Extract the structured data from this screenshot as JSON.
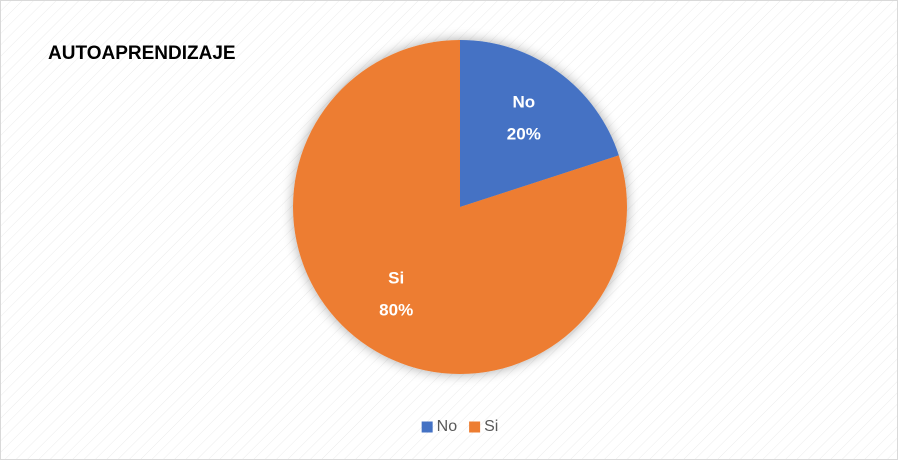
{
  "chart_data": {
    "type": "pie",
    "title": "AUTOAPRENDIZAJE",
    "categories": [
      "No",
      "Si"
    ],
    "values": [
      20,
      80
    ],
    "value_labels": [
      "20%",
      "80%"
    ],
    "colors": [
      "#4472c4",
      "#ed7d31"
    ],
    "legend": "bottom"
  }
}
